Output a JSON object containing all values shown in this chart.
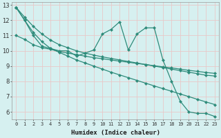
{
  "xlabel": "Humidex (Indice chaleur)",
  "bg_color": "#d6f0f0",
  "line_color": "#2e8b7a",
  "grid_color": "#c8e8e8",
  "xlim": [
    -0.5,
    23.5
  ],
  "ylim": [
    5.5,
    13.2
  ],
  "xticks": [
    0,
    1,
    2,
    3,
    4,
    5,
    6,
    7,
    8,
    9,
    10,
    11,
    12,
    13,
    14,
    15,
    16,
    17,
    18,
    19,
    20,
    21,
    22,
    23
  ],
  "yticks": [
    6,
    7,
    8,
    9,
    10,
    11,
    12,
    13
  ],
  "series": [
    {
      "x": [
        0,
        1,
        2,
        3,
        4,
        5,
        6,
        7,
        8,
        9,
        10,
        11,
        12,
        13,
        14,
        15,
        16,
        17,
        18,
        19,
        20,
        21,
        22,
        23
      ],
      "y": [
        12.85,
        12.0,
        11.0,
        10.3,
        10.15,
        10.0,
        10.0,
        9.65,
        9.85,
        10.05,
        11.1,
        11.4,
        11.9,
        10.05,
        11.1,
        11.5,
        11.5,
        9.4,
        8.0,
        6.7,
        6.0,
        5.9,
        5.9,
        5.7
      ],
      "marker": "D",
      "markersize": 2.2,
      "linewidth": 0.9,
      "with_marker": true
    },
    {
      "x": [
        0,
        1,
        2,
        3,
        4,
        5,
        6,
        7,
        8,
        9,
        10,
        11,
        12,
        13,
        14,
        15,
        16,
        17,
        18,
        19,
        20,
        21,
        22,
        23
      ],
      "y": [
        12.85,
        12.2,
        11.6,
        11.1,
        10.7,
        10.4,
        10.2,
        10.0,
        9.85,
        9.72,
        9.6,
        9.5,
        9.4,
        9.3,
        9.2,
        9.1,
        9.0,
        8.9,
        8.8,
        8.7,
        8.6,
        8.5,
        8.4,
        8.35
      ],
      "marker": "D",
      "markersize": 2.2,
      "linewidth": 0.9,
      "with_marker": true
    },
    {
      "x": [
        0,
        1,
        2,
        3,
        4,
        5,
        6,
        7,
        8,
        9,
        10,
        11,
        12,
        13,
        14,
        15,
        16,
        17,
        18,
        19,
        20,
        21,
        22,
        23
      ],
      "y": [
        11.0,
        10.75,
        10.4,
        10.2,
        10.1,
        9.95,
        9.85,
        9.75,
        9.65,
        9.55,
        9.48,
        9.4,
        9.32,
        9.25,
        9.17,
        9.1,
        9.02,
        8.95,
        8.88,
        8.8,
        8.72,
        8.65,
        8.58,
        8.52
      ],
      "marker": "D",
      "markersize": 2.2,
      "linewidth": 0.9,
      "with_marker": true
    },
    {
      "x": [
        0,
        1,
        2,
        3,
        4,
        5,
        6,
        7,
        8,
        9,
        10,
        11,
        12,
        13,
        14,
        15,
        16,
        17,
        18,
        19,
        20,
        21,
        22,
        23
      ],
      "y": [
        12.85,
        12.0,
        11.2,
        10.6,
        10.15,
        9.9,
        9.65,
        9.4,
        9.2,
        9.0,
        8.8,
        8.6,
        8.42,
        8.24,
        8.06,
        7.88,
        7.7,
        7.52,
        7.35,
        7.17,
        7.0,
        6.82,
        6.65,
        6.48
      ],
      "marker": "D",
      "markersize": 2.2,
      "linewidth": 0.9,
      "with_marker": true
    }
  ]
}
